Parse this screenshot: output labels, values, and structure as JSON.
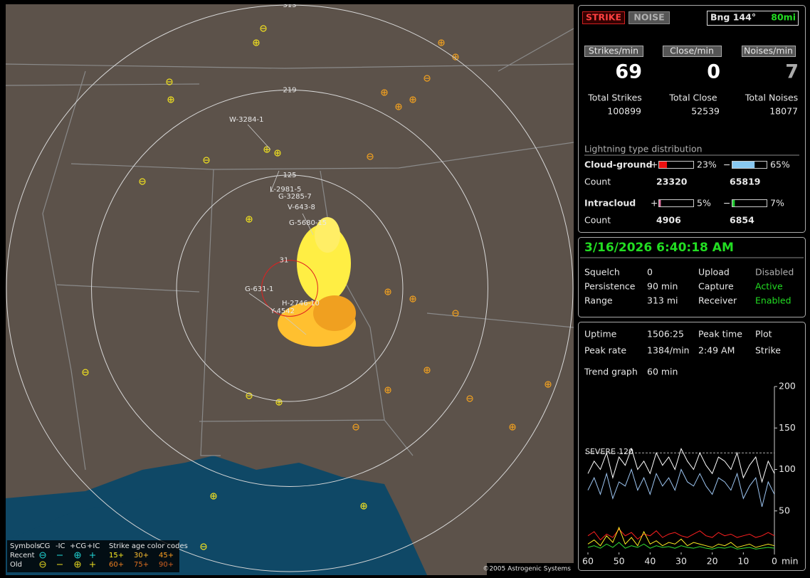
{
  "map": {
    "range_rings": [
      313,
      219,
      125,
      31
    ],
    "storm_labels": [
      "W-3284-1",
      "L-2981-5",
      "G-3285-7",
      "V-643-8",
      "G-5680-15",
      "G-631-1",
      "H-2746-10",
      "Y-4542"
    ],
    "copyright": "©2005 Astrogenic Systems",
    "legend": {
      "symbols": "Symbols",
      "types": [
        "-CG",
        "-IC",
        "+CG",
        "+IC"
      ],
      "age_title": "Strike age color codes",
      "recent": "Recent",
      "old": "Old",
      "recent_ages": [
        "15+",
        "30+",
        "45+"
      ],
      "old_ages": [
        "60+",
        "75+",
        "90+"
      ]
    }
  },
  "status": {
    "strike": "STRIKE",
    "noise": "NOISE",
    "bearing": "Bng 144°",
    "distance": "80mi"
  },
  "counters": [
    {
      "label": "Strikes/min",
      "value": 69,
      "total_label": "Total Strikes",
      "total": 100899
    },
    {
      "label": "Close/min",
      "value": 0,
      "total_label": "Total Close",
      "total": 52539
    },
    {
      "label": "Noises/min",
      "value": 7,
      "total_label": "Total Noises",
      "total": 18077
    }
  ],
  "distribution": {
    "title": "Lightning type distribution",
    "pos_sign": "+",
    "neg_sign": "−",
    "count_label": "Count",
    "rows": [
      {
        "name": "Cloud-ground",
        "pos": {
          "value": 23,
          "label": "23%"
        },
        "neg": {
          "value": 65,
          "label": "65%"
        },
        "pos_count": 23320,
        "neg_count": 65819,
        "pos_color": "#ee1111",
        "neg_color": "#88c8f0"
      },
      {
        "name": "Intracloud",
        "pos": {
          "value": 5,
          "label": "5%"
        },
        "neg": {
          "value": 7,
          "label": "7%"
        },
        "pos_count": 4906,
        "neg_count": 6854,
        "pos_color": "#e070a0",
        "neg_color": "#22cc33"
      }
    ]
  },
  "clock": "3/16/2026 6:40:18 AM",
  "settings": [
    [
      "Squelch",
      "0",
      "Upload",
      "Disabled"
    ],
    [
      "Persistence",
      "90 min",
      "Capture",
      "Active"
    ],
    [
      "Range",
      "313 mi",
      "Receiver",
      "Enabled"
    ]
  ],
  "stats": [
    [
      "Uptime",
      "1506:25",
      "Peak time",
      "Plot"
    ],
    [
      "Peak rate",
      "1384/min",
      "2:49 AM",
      "Strike"
    ]
  ],
  "trend": [
    "Trend graph",
    "60 min"
  ],
  "chart_data": {
    "type": "line",
    "xlim": [
      60,
      0
    ],
    "ylim": [
      0,
      200
    ],
    "xticks": [
      60,
      50,
      40,
      30,
      20,
      10,
      0
    ],
    "yticks": [
      50,
      100,
      150,
      200
    ],
    "x_unit": "min",
    "severe_label": "SEVERE",
    "severe_value": 120,
    "x": [
      60,
      58,
      56,
      54,
      52,
      50,
      48,
      46,
      44,
      42,
      40,
      38,
      36,
      34,
      32,
      30,
      28,
      26,
      24,
      22,
      20,
      18,
      16,
      14,
      12,
      10,
      8,
      6,
      4,
      2,
      0
    ],
    "series": [
      {
        "color": "#ffffff",
        "values": [
          95,
          110,
          100,
          120,
          90,
          115,
          105,
          125,
          100,
          110,
          95,
          120,
          105,
          115,
          100,
          125,
          110,
          100,
          120,
          105,
          95,
          115,
          110,
          100,
          120,
          90,
          105,
          115,
          85,
          110,
          95
        ]
      },
      {
        "color": "#9cc4f0",
        "values": [
          75,
          90,
          70,
          95,
          65,
          85,
          80,
          100,
          75,
          90,
          70,
          95,
          80,
          90,
          75,
          100,
          85,
          80,
          95,
          80,
          70,
          90,
          85,
          75,
          95,
          65,
          80,
          90,
          55,
          85,
          70
        ]
      },
      {
        "color": "#ff2020",
        "values": [
          20,
          25,
          15,
          22,
          18,
          28,
          20,
          24,
          16,
          22,
          20,
          26,
          18,
          22,
          24,
          20,
          18,
          22,
          26,
          20,
          18,
          24,
          20,
          22,
          18,
          20,
          22,
          18,
          20,
          24,
          20
        ]
      },
      {
        "color": "#ffee22",
        "values": [
          10,
          15,
          8,
          20,
          12,
          30,
          10,
          18,
          8,
          25,
          10,
          14,
          8,
          12,
          10,
          16,
          8,
          12,
          10,
          8,
          6,
          10,
          8,
          12,
          6,
          8,
          10,
          6,
          8,
          10,
          8
        ]
      },
      {
        "color": "#33dd33",
        "values": [
          6,
          8,
          5,
          10,
          6,
          12,
          5,
          8,
          6,
          10,
          5,
          8,
          6,
          7,
          5,
          8,
          6,
          5,
          7,
          5,
          4,
          6,
          5,
          7,
          4,
          5,
          6,
          4,
          5,
          6,
          5
        ]
      }
    ]
  }
}
